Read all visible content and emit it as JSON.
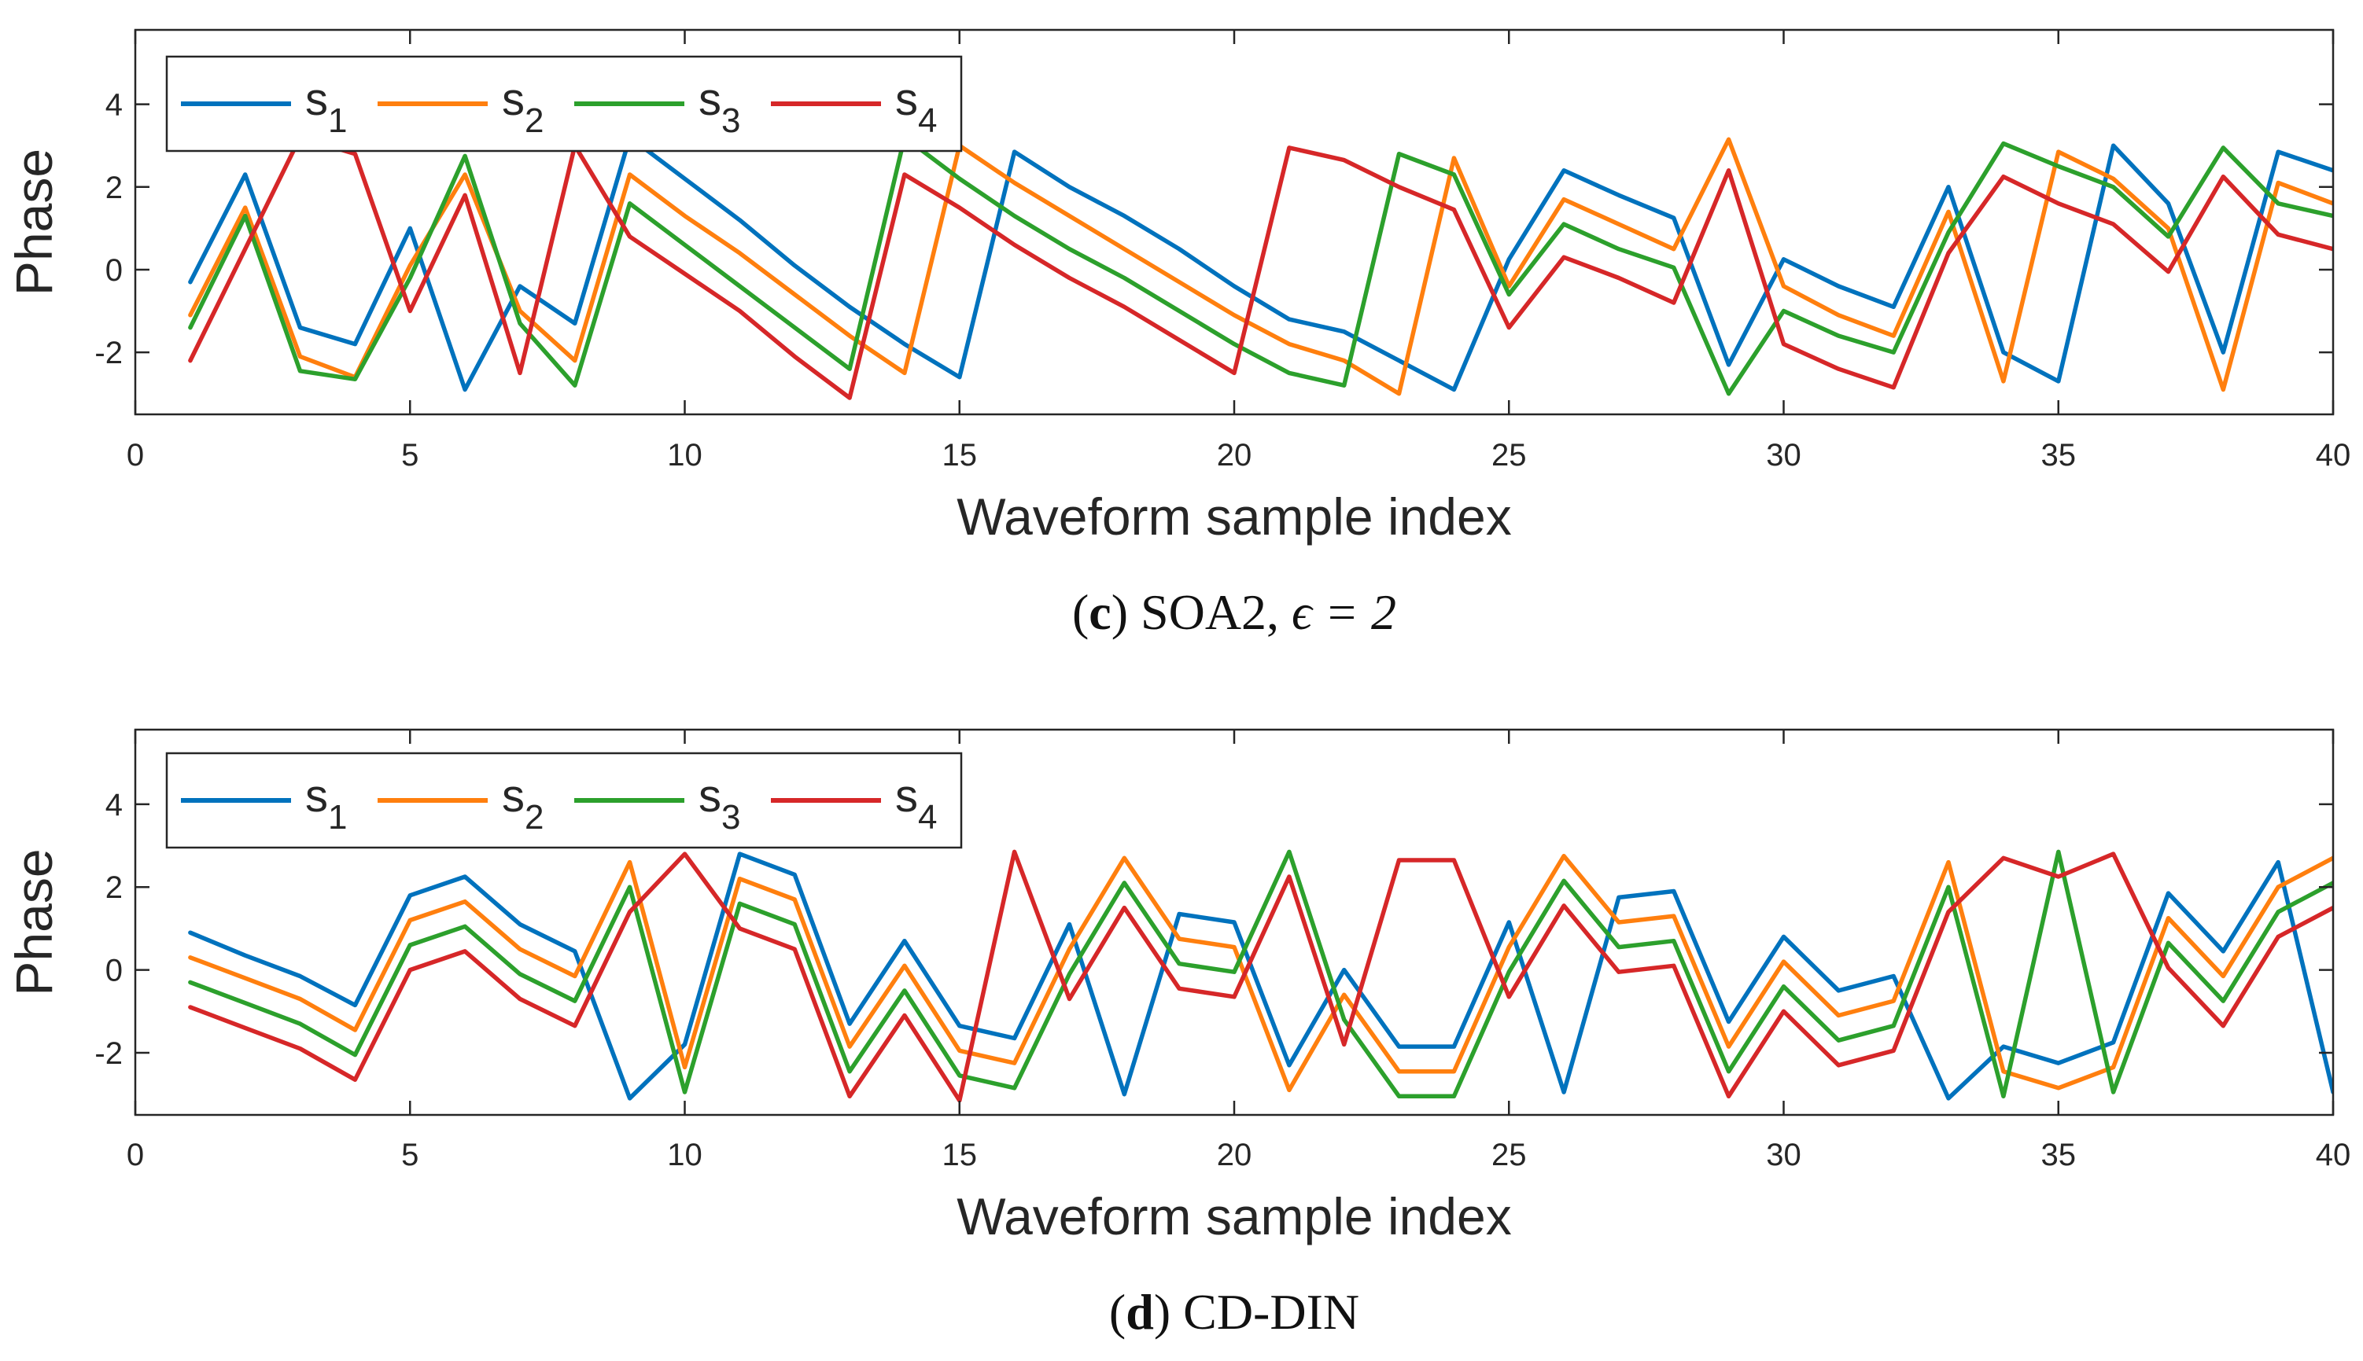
{
  "colors": {
    "s1": "#0072BD",
    "s2": "#FF7F0E",
    "s3": "#2CA02C",
    "s4": "#D62728",
    "axis": "#262626"
  },
  "chart_data": [
    {
      "type": "line",
      "panel": "c",
      "caption": {
        "label": "c",
        "text": ") SOA2, ",
        "math": "ϵ = 2"
      },
      "xlabel": "Waveform sample index",
      "ylabel": "Phase",
      "xlim": [
        0,
        40
      ],
      "ylim": [
        -3.5,
        5.8
      ],
      "xticks": [
        0,
        5,
        10,
        15,
        20,
        25,
        30,
        35,
        40
      ],
      "yticks": [
        -2,
        0,
        2,
        4
      ],
      "legend_location": "top-left",
      "x": [
        1,
        2,
        3,
        4,
        5,
        6,
        7,
        8,
        9,
        10,
        11,
        12,
        13,
        14,
        15,
        16,
        17,
        18,
        19,
        20,
        21,
        22,
        23,
        24,
        25,
        26,
        27,
        28,
        29,
        30,
        31,
        32,
        33,
        34,
        35,
        36,
        37,
        38,
        39,
        40
      ],
      "series": [
        {
          "name": "s",
          "sub": "1",
          "color_key": "s1",
          "values": [
            -0.3,
            2.3,
            -1.4,
            -1.8,
            1.0,
            -2.9,
            -0.4,
            -1.3,
            3.2,
            2.2,
            1.2,
            0.1,
            -0.9,
            -1.8,
            -2.6,
            2.85,
            2.0,
            1.3,
            0.5,
            -0.4,
            -1.2,
            -1.5,
            -2.2,
            -2.9,
            0.25,
            2.4,
            1.8,
            1.25,
            -2.3,
            0.25,
            -0.4,
            -0.9,
            2.0,
            -2.0,
            -2.7,
            3.0,
            1.6,
            -2.0,
            2.85,
            2.4
          ]
        },
        {
          "name": "s",
          "sub": "2",
          "color_key": "s2",
          "values": [
            -1.1,
            1.5,
            -2.1,
            -2.6,
            0.1,
            2.3,
            -1.0,
            -2.2,
            2.3,
            1.3,
            0.4,
            -0.6,
            -1.6,
            -2.5,
            3.0,
            2.1,
            1.3,
            0.5,
            -0.3,
            -1.1,
            -1.8,
            -2.2,
            -3.0,
            2.7,
            -0.4,
            1.7,
            1.1,
            0.5,
            3.15,
            -0.4,
            -1.1,
            -1.6,
            1.4,
            -2.7,
            2.85,
            2.2,
            1.0,
            -2.9,
            2.1,
            1.6
          ]
        },
        {
          "name": "s",
          "sub": "3",
          "color_key": "s3",
          "values": [
            -1.4,
            1.3,
            -2.45,
            -2.65,
            -0.2,
            2.75,
            -1.3,
            -2.8,
            1.6,
            0.6,
            -0.4,
            -1.4,
            -2.4,
            3.2,
            2.2,
            1.3,
            0.5,
            -0.2,
            -1.0,
            -1.8,
            -2.5,
            -2.8,
            2.8,
            2.3,
            -0.6,
            1.1,
            0.5,
            0.05,
            -3.0,
            -1.0,
            -1.6,
            -2.0,
            0.9,
            3.05,
            2.5,
            2.0,
            0.8,
            2.95,
            1.6,
            1.3
          ]
        },
        {
          "name": "s",
          "sub": "4",
          "color_key": "s4",
          "values": [
            -2.2,
            0.5,
            3.2,
            2.8,
            -1.0,
            1.8,
            -2.5,
            3.0,
            0.8,
            -0.1,
            -1.0,
            -2.1,
            -3.1,
            2.3,
            1.5,
            0.6,
            -0.2,
            -0.9,
            -1.7,
            -2.5,
            2.95,
            2.65,
            2.0,
            1.45,
            -1.4,
            0.3,
            -0.2,
            -0.8,
            2.4,
            -1.8,
            -2.4,
            -2.85,
            0.4,
            2.25,
            1.6,
            1.1,
            -0.05,
            2.25,
            0.85,
            0.5
          ]
        }
      ]
    },
    {
      "type": "line",
      "panel": "d",
      "caption": {
        "label": "d",
        "text": ") CD-DIN",
        "math": ""
      },
      "xlabel": "Waveform sample index",
      "ylabel": "Phase",
      "xlim": [
        0,
        40
      ],
      "ylim": [
        -3.5,
        5.8
      ],
      "xticks": [
        0,
        5,
        10,
        15,
        20,
        25,
        30,
        35,
        40
      ],
      "yticks": [
        -2,
        0,
        2,
        4
      ],
      "legend_location": "top-left",
      "x": [
        1,
        2,
        3,
        4,
        5,
        6,
        7,
        8,
        9,
        10,
        11,
        12,
        13,
        14,
        15,
        16,
        17,
        18,
        19,
        20,
        21,
        22,
        23,
        24,
        25,
        26,
        27,
        28,
        29,
        30,
        31,
        32,
        33,
        34,
        35,
        36,
        37,
        38,
        39,
        40
      ],
      "series": [
        {
          "name": "s",
          "sub": "1",
          "color_key": "s1",
          "values": [
            0.9,
            0.35,
            -0.15,
            -0.85,
            1.8,
            2.25,
            1.1,
            0.45,
            -3.1,
            -1.8,
            2.8,
            2.3,
            -1.3,
            0.7,
            -1.35,
            -1.65,
            1.1,
            -3.0,
            1.35,
            1.15,
            -2.3,
            0.0,
            -1.85,
            -1.85,
            1.15,
            -2.95,
            1.75,
            1.9,
            -1.25,
            0.8,
            -0.5,
            -0.15,
            -3.1,
            -1.85,
            -2.25,
            -1.75,
            1.85,
            0.45,
            2.6,
            -2.95
          ]
        },
        {
          "name": "s",
          "sub": "2",
          "color_key": "s2",
          "values": [
            0.3,
            -0.2,
            -0.7,
            -1.45,
            1.2,
            1.65,
            0.5,
            -0.15,
            2.6,
            -2.35,
            2.2,
            1.7,
            -1.85,
            0.1,
            -1.95,
            -2.25,
            0.5,
            2.7,
            0.75,
            0.55,
            -2.9,
            -0.6,
            -2.45,
            -2.45,
            0.55,
            2.75,
            1.15,
            1.3,
            -1.85,
            0.2,
            -1.1,
            -0.75,
            2.6,
            -2.45,
            -2.85,
            -2.35,
            1.25,
            -0.15,
            2.0,
            2.7
          ]
        },
        {
          "name": "s",
          "sub": "3",
          "color_key": "s3",
          "values": [
            -0.3,
            -0.8,
            -1.3,
            -2.05,
            0.6,
            1.05,
            -0.1,
            -0.75,
            2.0,
            -2.95,
            1.6,
            1.1,
            -2.45,
            -0.5,
            -2.55,
            -2.85,
            -0.1,
            2.1,
            0.15,
            -0.05,
            2.85,
            -1.2,
            -3.05,
            -3.05,
            -0.05,
            2.15,
            0.55,
            0.7,
            -2.45,
            -0.4,
            -1.7,
            -1.35,
            2.0,
            -3.05,
            2.85,
            -2.95,
            0.65,
            -0.75,
            1.4,
            2.1
          ]
        },
        {
          "name": "s",
          "sub": "4",
          "color_key": "s4",
          "values": [
            -0.9,
            -1.4,
            -1.9,
            -2.65,
            0.0,
            0.45,
            -0.7,
            -1.35,
            1.4,
            2.8,
            1.0,
            0.5,
            -3.05,
            -1.1,
            -3.15,
            2.85,
            -0.7,
            1.5,
            -0.45,
            -0.65,
            2.25,
            -1.8,
            2.65,
            2.65,
            -0.65,
            1.55,
            -0.05,
            0.1,
            -3.05,
            -1.0,
            -2.3,
            -1.95,
            1.4,
            2.7,
            2.25,
            2.8,
            0.05,
            -1.35,
            0.8,
            1.5
          ]
        }
      ]
    }
  ]
}
